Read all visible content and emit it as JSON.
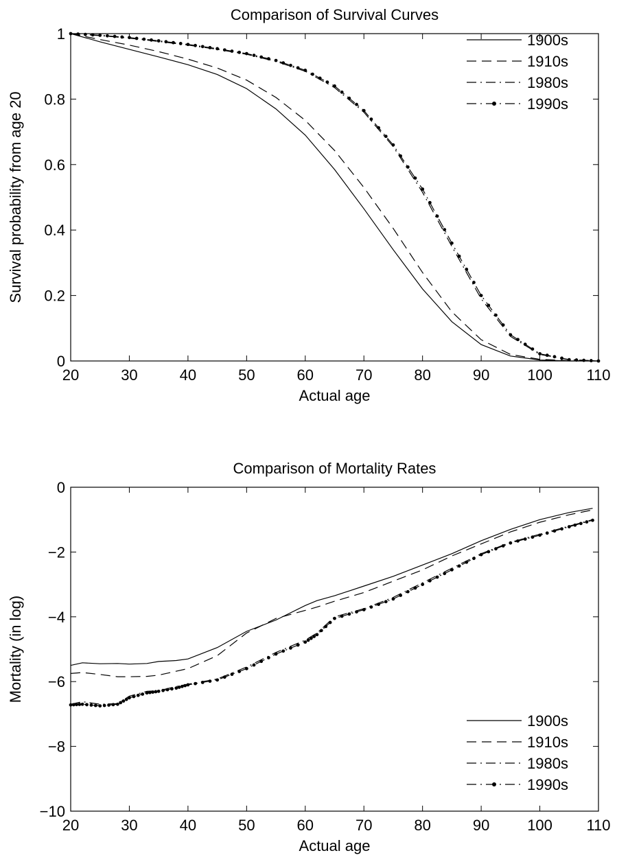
{
  "chart_data": [
    {
      "type": "line",
      "title": "Comparison of Survival Curves",
      "xlabel": "Actual age",
      "ylabel": "Survival probability from age 20",
      "xlim": [
        20,
        110
      ],
      "ylim": [
        0,
        1
      ],
      "xticks": [
        "20",
        "30",
        "40",
        "50",
        "60",
        "70",
        "80",
        "90",
        "100",
        "110"
      ],
      "yticks": [
        "0",
        "0.2",
        "0.4",
        "0.6",
        "0.8",
        "1"
      ],
      "legend_position": "top-right",
      "grid": false,
      "x": [
        20,
        25,
        30,
        35,
        40,
        45,
        50,
        55,
        60,
        65,
        70,
        75,
        80,
        85,
        90,
        95,
        100,
        105,
        110
      ],
      "series": [
        {
          "name": "1900s",
          "style": "solid",
          "values": [
            1.0,
            0.975,
            0.952,
            0.929,
            0.905,
            0.875,
            0.832,
            0.77,
            0.69,
            0.585,
            0.465,
            0.34,
            0.22,
            0.12,
            0.05,
            0.015,
            0.003,
            0.0,
            0.0
          ]
        },
        {
          "name": "1910s",
          "style": "dashed",
          "values": [
            1.0,
            0.982,
            0.965,
            0.945,
            0.922,
            0.895,
            0.858,
            0.805,
            0.735,
            0.643,
            0.53,
            0.405,
            0.27,
            0.15,
            0.065,
            0.02,
            0.005,
            0.001,
            0.0
          ]
        },
        {
          "name": "1980s",
          "style": "dashdot",
          "values": [
            1.0,
            0.994,
            0.986,
            0.976,
            0.965,
            0.952,
            0.937,
            0.915,
            0.885,
            0.835,
            0.76,
            0.655,
            0.515,
            0.35,
            0.19,
            0.075,
            0.02,
            0.004,
            0.0
          ]
        },
        {
          "name": "1990s",
          "style": "dashdot-dots",
          "values": [
            1.0,
            0.995,
            0.988,
            0.978,
            0.967,
            0.954,
            0.939,
            0.918,
            0.888,
            0.84,
            0.765,
            0.66,
            0.525,
            0.36,
            0.2,
            0.08,
            0.022,
            0.004,
            0.0
          ]
        }
      ]
    },
    {
      "type": "line",
      "title": "Comparison of Mortality Rates",
      "xlabel": "Actual age",
      "ylabel": "Mortality (in log)",
      "xlim": [
        20,
        110
      ],
      "ylim": [
        -10,
        0
      ],
      "xticks": [
        "20",
        "30",
        "40",
        "50",
        "60",
        "70",
        "80",
        "90",
        "100",
        "110"
      ],
      "yticks": [
        "−10",
        "−8",
        "−6",
        "−4",
        "−2",
        "0"
      ],
      "legend_position": "bottom-right",
      "grid": false,
      "x": [
        20,
        22,
        25,
        28,
        30,
        33,
        35,
        38,
        40,
        45,
        50,
        55,
        60,
        62,
        65,
        70,
        75,
        80,
        85,
        90,
        95,
        100,
        105,
        109
      ],
      "series": [
        {
          "name": "1900s",
          "style": "solid",
          "values": [
            -5.5,
            -5.42,
            -5.45,
            -5.44,
            -5.46,
            -5.44,
            -5.38,
            -5.35,
            -5.3,
            -4.95,
            -4.45,
            -4.1,
            -3.65,
            -3.5,
            -3.35,
            -3.05,
            -2.75,
            -2.4,
            -2.05,
            -1.65,
            -1.3,
            -1.0,
            -0.78,
            -0.65
          ]
        },
        {
          "name": "1910s",
          "style": "dashed",
          "values": [
            -5.75,
            -5.72,
            -5.78,
            -5.85,
            -5.85,
            -5.84,
            -5.8,
            -5.68,
            -5.6,
            -5.2,
            -4.5,
            -4.05,
            -3.8,
            -3.7,
            -3.52,
            -3.25,
            -2.9,
            -2.55,
            -2.12,
            -1.75,
            -1.38,
            -1.08,
            -0.85,
            -0.7
          ]
        },
        {
          "name": "1980s",
          "style": "dashdot",
          "values": [
            -6.7,
            -6.62,
            -6.7,
            -6.68,
            -6.45,
            -6.3,
            -6.28,
            -6.15,
            -6.08,
            -5.92,
            -5.55,
            -5.1,
            -4.72,
            -4.5,
            -4.0,
            -3.75,
            -3.4,
            -2.95,
            -2.5,
            -2.05,
            -1.7,
            -1.45,
            -1.2,
            -1.0
          ]
        },
        {
          "name": "1990s",
          "style": "dashdot-dots",
          "values": [
            -6.72,
            -6.7,
            -6.75,
            -6.7,
            -6.5,
            -6.35,
            -6.3,
            -6.2,
            -6.1,
            -5.95,
            -5.6,
            -5.15,
            -4.78,
            -4.55,
            -4.05,
            -3.78,
            -3.45,
            -3.0,
            -2.55,
            -2.08,
            -1.72,
            -1.48,
            -1.22,
            -1.02
          ]
        }
      ]
    }
  ]
}
